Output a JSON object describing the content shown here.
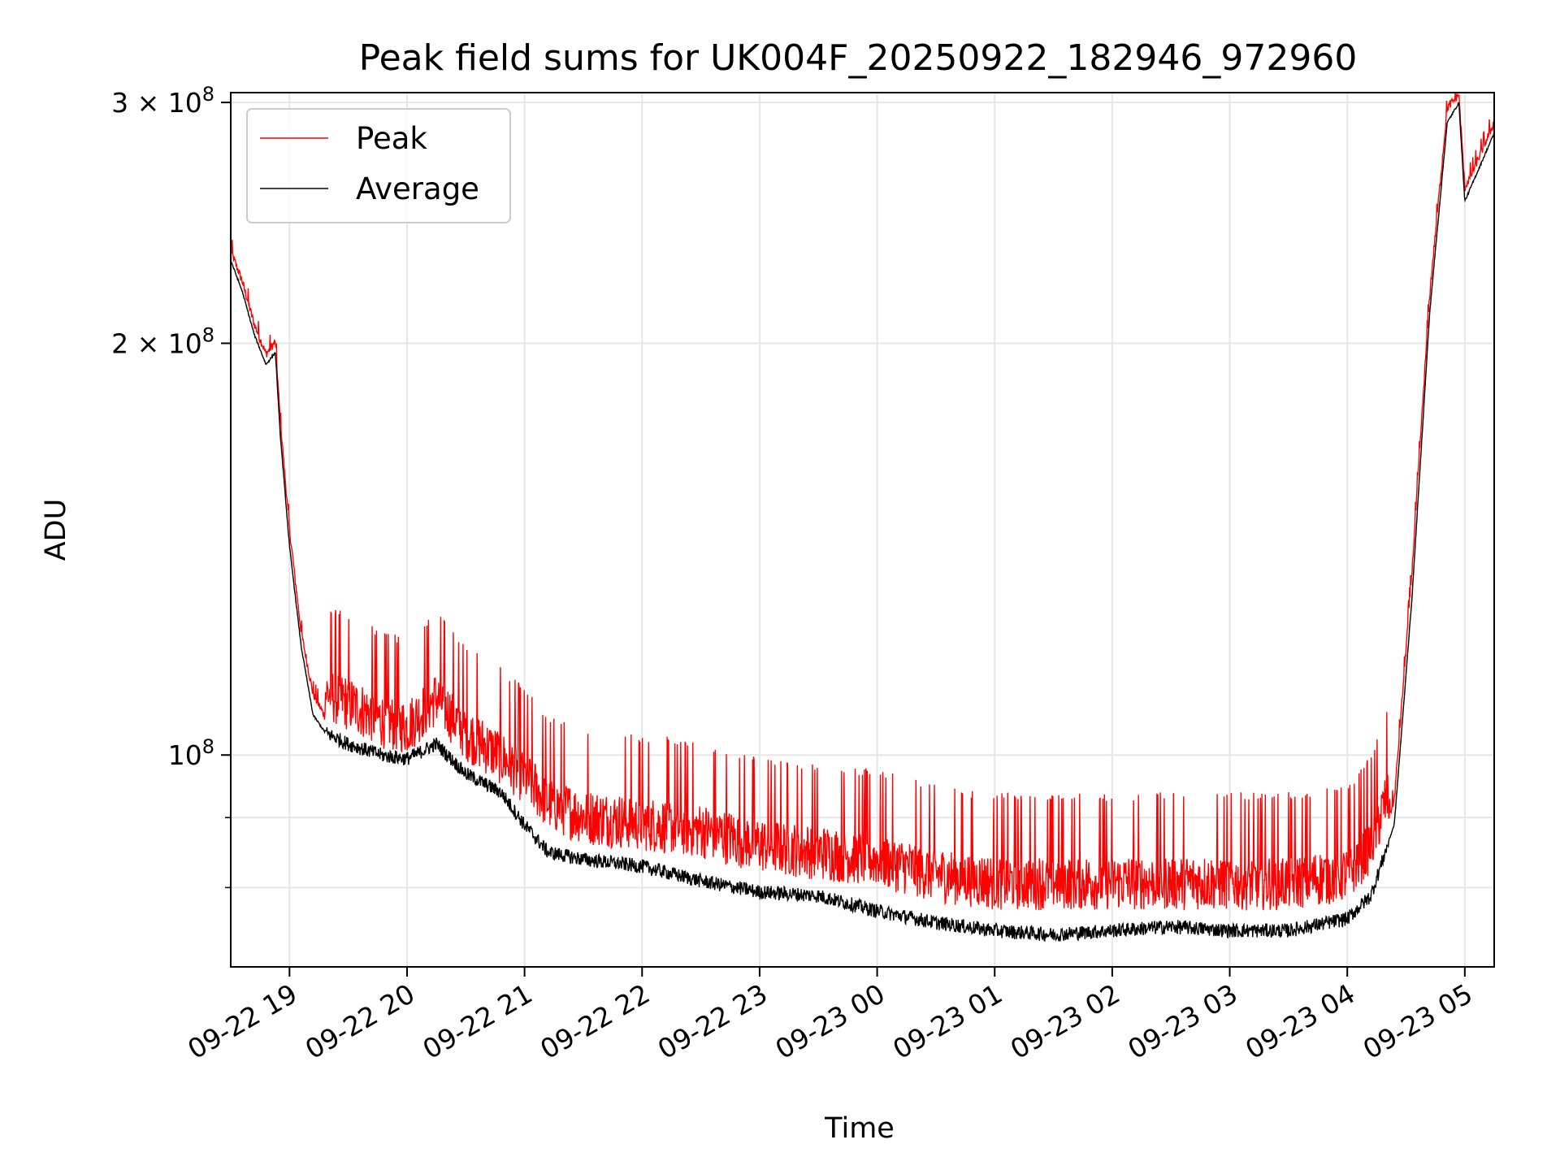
{
  "chart_data": {
    "type": "line",
    "title": "Peak field sums for UK004F_20250922_182946_972960",
    "xlabel": "Time",
    "ylabel": "ADU",
    "yscale": "log",
    "ylim": [
      70000000,
      305000000
    ],
    "xlim_hours": [
      18.5,
      29.25
    ],
    "x_ticks": [
      {
        "label": "09-22 19",
        "hour": 19
      },
      {
        "label": "09-22 20",
        "hour": 20
      },
      {
        "label": "09-22 21",
        "hour": 21
      },
      {
        "label": "09-22 22",
        "hour": 22
      },
      {
        "label": "09-22 23",
        "hour": 23
      },
      {
        "label": "09-23 00",
        "hour": 24
      },
      {
        "label": "09-23 01",
        "hour": 25
      },
      {
        "label": "09-23 02",
        "hour": 26
      },
      {
        "label": "09-23 03",
        "hour": 27
      },
      {
        "label": "09-23 04",
        "hour": 28
      },
      {
        "label": "09-23 05",
        "hour": 29
      }
    ],
    "y_ticks": [
      {
        "value": 100000000,
        "base": "10",
        "exp": "8"
      },
      {
        "value": 200000000,
        "base": "2 × 10",
        "exp": "8"
      },
      {
        "value": 300000000,
        "base": "3 × 10",
        "exp": "8"
      }
    ],
    "y_minor_ticks": [
      80000000,
      90000000
    ],
    "legend": {
      "position": "upper-left",
      "entries": [
        "Peak",
        "Average"
      ]
    },
    "series": [
      {
        "name": "Peak",
        "color": "#ff0000",
        "hours": [
          18.5,
          18.6,
          18.7,
          18.8,
          18.88,
          18.92,
          19.0,
          19.1,
          19.2,
          19.3,
          19.5,
          19.8,
          20.0,
          20.25,
          20.5,
          20.8,
          21.0,
          21.2,
          21.5,
          22.0,
          22.5,
          23.0,
          23.5,
          24.0,
          24.5,
          25.0,
          25.5,
          26.0,
          26.5,
          27.0,
          27.5,
          28.0,
          28.2,
          28.4,
          28.55,
          28.7,
          28.85,
          28.95,
          29.0,
          29.05,
          29.25
        ],
        "values": [
          232000000,
          220000000,
          205000000,
          195000000,
          199000000,
          175000000,
          145000000,
          122000000,
          110000000,
          106000000,
          104000000,
          101000000,
          100000000,
          105000000,
          99000000,
          95000000,
          92000000,
          88000000,
          86000000,
          85000000,
          84000000,
          82000000,
          81000000,
          80000000,
          78000000,
          77000000,
          77000000,
          77000000,
          77000000,
          77000000,
          77000000,
          78000000,
          82000000,
          92000000,
          135000000,
          215000000,
          295000000,
          302000000,
          258000000,
          263000000,
          288000000
        ],
        "noise_amplitude": 0.1
      },
      {
        "name": "Average",
        "color": "#000000",
        "hours": [
          18.5,
          18.6,
          18.7,
          18.8,
          18.88,
          18.92,
          19.0,
          19.1,
          19.2,
          19.3,
          19.5,
          19.8,
          20.0,
          20.25,
          20.5,
          20.8,
          21.0,
          21.2,
          21.5,
          22.0,
          22.5,
          23.0,
          23.5,
          24.0,
          24.5,
          25.0,
          25.5,
          26.0,
          26.5,
          27.0,
          27.5,
          28.0,
          28.2,
          28.4,
          28.55,
          28.7,
          28.85,
          28.95,
          29.0,
          29.05,
          29.25
        ],
        "values": [
          230000000,
          218000000,
          203000000,
          193000000,
          197000000,
          172000000,
          142000000,
          120000000,
          107000000,
          104000000,
          102000000,
          100000000,
          99500000,
          102000000,
          97000000,
          94000000,
          89000000,
          85000000,
          84000000,
          83000000,
          81000000,
          79500000,
          79000000,
          77000000,
          75500000,
          74500000,
          74000000,
          74500000,
          75000000,
          74500000,
          74500000,
          76000000,
          79000000,
          89000000,
          130000000,
          210000000,
          290000000,
          300000000,
          254000000,
          260000000,
          285000000
        ],
        "noise_amplitude": 0.012
      }
    ]
  }
}
